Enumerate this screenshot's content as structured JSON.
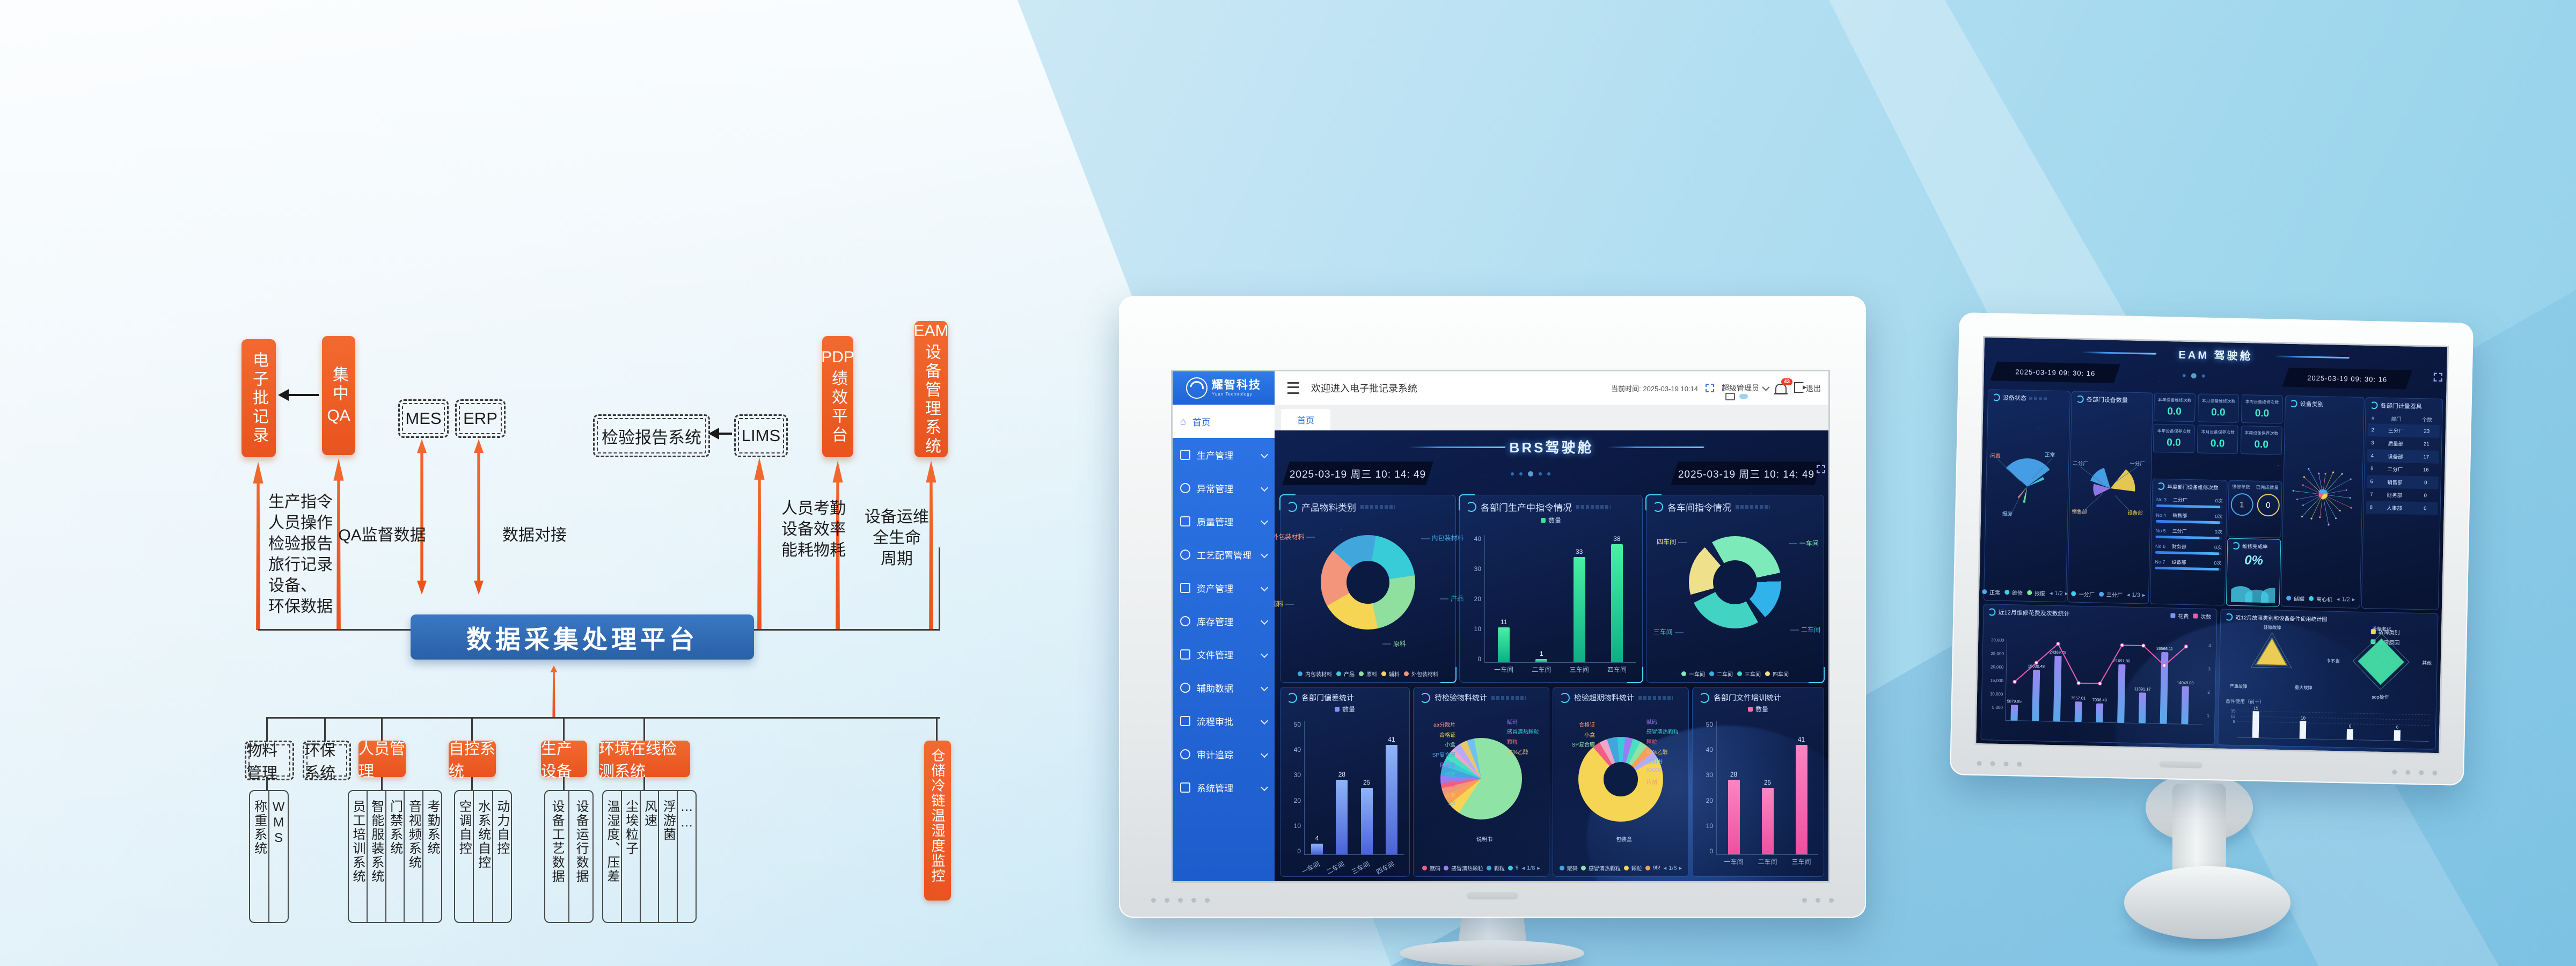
{
  "diagram": {
    "top_boxes": {
      "ebr": "电子批记录",
      "qa_cn": "集中",
      "qa_en": "QA",
      "mes": "MES",
      "erp": "ERP",
      "report": "检验报告系统",
      "lims": "LIMS",
      "pdp_en": "PDP",
      "pdp_cn": "绩效平台",
      "eam_en": "EAM",
      "eam_cn": "设备管理系统"
    },
    "labels": {
      "left_lines": [
        "生产指令",
        "人员操作",
        "检验报告",
        "旅行记录",
        "设备、",
        "环保数据"
      ],
      "qa_data": "QA监督数据",
      "link": "数据对接",
      "hr_lines": [
        "人员考勤",
        "设备效率",
        "能耗物耗"
      ],
      "ops_lines": [
        "设备运维",
        "全生命",
        "周期"
      ]
    },
    "platform": "数据采集处理平台",
    "bottom_boxes": [
      {
        "label": "物料管理",
        "variant": "dashed"
      },
      {
        "label": "环保系统",
        "variant": "dashed"
      },
      {
        "label": "人员管理",
        "variant": "solid"
      },
      {
        "label": "自控系统",
        "variant": "solid"
      },
      {
        "label": "生产设备",
        "variant": "solid"
      },
      {
        "label": "环境在线检测系统",
        "variant": "solid"
      }
    ],
    "storage": "仓储冷链温湿度监控",
    "groups": [
      [
        "称重系统",
        "WMS"
      ],
      [
        "员工培训系统",
        "智能服装系统",
        "门禁系统",
        "音视频系统",
        "考勤系统"
      ],
      [
        "空调自控",
        "水系统自控",
        "动力自控"
      ],
      [
        "设备工艺数据",
        "设备运行数据"
      ],
      [
        "温湿度、压差",
        "尘埃粒子",
        "风速",
        "浮游菌",
        "……"
      ]
    ]
  },
  "big": {
    "app": {
      "logo": "耀智科技",
      "logo_sub": "Yuan Technology",
      "welcome": "欢迎进入电子批记录系统",
      "time": "当前时间: 2025-03-19 10:14",
      "user": "超级管理员",
      "badge": "43",
      "logout": "退出",
      "tab": "首页",
      "menu": [
        {
          "label": "首页",
          "active": true
        },
        {
          "label": "生产管理"
        },
        {
          "label": "异常管理"
        },
        {
          "label": "质量管理"
        },
        {
          "label": "工艺配置管理"
        },
        {
          "label": "资产管理"
        },
        {
          "label": "库存管理"
        },
        {
          "label": "文件管理"
        },
        {
          "label": "辅助数据"
        },
        {
          "label": "流程审批"
        },
        {
          "label": "审计追踪"
        },
        {
          "label": "系统管理"
        }
      ]
    },
    "dash": {
      "title": "BRS驾驶舱",
      "date_left": "2025-03-19 周三 10: 14: 49",
      "date_right": "2025-03-19 周三 10: 14: 49",
      "material": {
        "title": "产品物料类别",
        "slices": [
          {
            "label": "外包装材料",
            "value": 20,
            "color": "#f2957b"
          },
          {
            "label": "内包装材料",
            "value": 16,
            "color": "#41a6dc"
          },
          {
            "label": "产品",
            "value": 20,
            "color": "#38cbd8"
          },
          {
            "label": "原料",
            "value": 24,
            "color": "#8fdf9f"
          },
          {
            "label": "辅料",
            "value": 20,
            "color": "#f6d554"
          }
        ],
        "callouts": [
          "外包装材料",
          "内包装材料",
          "辅料",
          "产品",
          "原料"
        ],
        "legend": [
          {
            "label": "内包装材料",
            "color": "#41a6dc"
          },
          {
            "label": "产品",
            "color": "#38cbd8"
          },
          {
            "label": "原料",
            "color": "#8fdf9f"
          },
          {
            "label": "辅料",
            "color": "#f6d554"
          },
          {
            "label": "外包装材料",
            "color": "#f2957b"
          }
        ]
      },
      "orders": {
        "title": "各部门生产中指令情况",
        "legend": [
          {
            "label": "数量",
            "color": "#3ee28f"
          }
        ],
        "categories": [
          "一车间",
          "二车间",
          "三车间",
          "四车间"
        ],
        "values": [
          11,
          1,
          33,
          38
        ],
        "yticks": [
          "40",
          "30",
          "20",
          "10",
          "0"
        ],
        "ymax": 40
      },
      "workshop": {
        "title": "各车间指令情况",
        "slices": [
          {
            "label": "一车间",
            "value": 30,
            "color": "#7debb9"
          },
          {
            "label": "二车间",
            "value": 14,
            "color": "#2fb3ea"
          },
          {
            "label": "三车间",
            "value": 26,
            "color": "#43d3c2"
          },
          {
            "label": "四车间",
            "value": 18,
            "color": "#efe08c"
          }
        ],
        "callouts": [
          "四车间",
          "一车间",
          "三车间",
          "二车间"
        ],
        "legend": [
          {
            "label": "一车间",
            "color": "#7debb9"
          },
          {
            "label": "二车间",
            "color": "#2fb3ea"
          },
          {
            "label": "三车间",
            "color": "#43d3c2"
          },
          {
            "label": "四车间",
            "color": "#efe08c"
          }
        ]
      },
      "deviation": {
        "title": "各部门偏差统计",
        "legend": [
          {
            "label": "数量",
            "color": "#7c93f2"
          }
        ],
        "categories": [
          "一车间",
          "二车间",
          "三车间",
          "四车间"
        ],
        "values": [
          4,
          28,
          25,
          41
        ],
        "yticks": [
          "50",
          "40",
          "30",
          "20",
          "10",
          "0"
        ],
        "ymax": 50
      },
      "pending": {
        "title": "待检验物料统计",
        "slices": [
          {
            "label": "说明书",
            "value": 62,
            "color": "#8fe3a5"
          },
          {
            "label": "颗粒",
            "value": 5,
            "color": "#f6d554"
          },
          {
            "label": "95%乙醇",
            "value": 4,
            "color": "#f89f58"
          },
          {
            "label": "赋码",
            "value": 3,
            "color": "#f2957b"
          },
          {
            "label": "感冒清热颗粒",
            "value": 2,
            "color": "#ef5f7f"
          },
          {
            "label": "aa分散片",
            "value": 3,
            "color": "#9a7df2"
          },
          {
            "label": "合格证",
            "value": 4,
            "color": "#41a6dc"
          },
          {
            "label": "小盒",
            "value": 3,
            "color": "#38cbd8"
          },
          {
            "label": "SP复合膜",
            "value": 3,
            "color": "#4adfc0"
          },
          {
            "label": "包装盒",
            "value": 2,
            "color": "#f0a6c8"
          },
          {
            "label": "标签",
            "value": 3,
            "color": "#b9aaf5"
          },
          {
            "label": "片剂",
            "value": 3,
            "color": "#e8c86a"
          },
          {
            "label": "胶囊",
            "value": 3,
            "color": "#6fc1f0"
          }
        ],
        "callouts_left": [
          "aa分散片",
          "合格证",
          "小盒",
          "SP复合膜",
          "包装盒",
          "标签",
          "胶囊",
          "片剂",
          "XX"
        ],
        "callouts_right": [
          "赋码",
          "感冒清热颗粒",
          "颗粒",
          "95%乙醇"
        ],
        "callout_bottom": "说明书",
        "legend": [
          {
            "label": "赋码",
            "color": "#ef5f7f"
          },
          {
            "label": "感冒清热颗粒",
            "color": "#9a7df2"
          },
          {
            "label": "颗粒",
            "color": "#41a6dc"
          },
          {
            "label": "9",
            "color": "#38cbd8"
          }
        ],
        "pager": "1/8"
      },
      "overdue": {
        "title": "检验超期物料统计",
        "slices": [
          {
            "label": "颗粒",
            "value": 72,
            "color": "#f6d554"
          },
          {
            "label": "赋码",
            "value": 3,
            "color": "#ef5f7f"
          },
          {
            "label": "感冒清热颗粒",
            "value": 3,
            "color": "#f0a6c8"
          },
          {
            "label": "合格证",
            "value": 4,
            "color": "#41a6dc"
          },
          {
            "label": "小盒",
            "value": 3,
            "color": "#38cbd8"
          },
          {
            "label": "aa分散片",
            "value": 3,
            "color": "#9a7df2"
          },
          {
            "label": "SP复合膜",
            "value": 3,
            "color": "#4adfc0"
          },
          {
            "label": "片剂",
            "value": 3,
            "color": "#8fe3a5"
          },
          {
            "label": "95%乙醇",
            "value": 3,
            "color": "#f89f58"
          },
          {
            "label": "胶囊",
            "value": 3,
            "color": "#b9aaf5"
          }
        ],
        "callouts_left": [
          "合格证",
          "小盒",
          "SP复合膜"
        ],
        "callouts_right": [
          "赋码",
          "感冒清热颗粒",
          "颗粒",
          "95%乙醇",
          "说明书",
          "XXXX",
          "片剂",
          "胶囊"
        ],
        "callout_bottom": "包装盒",
        "legend": [
          {
            "label": "赋码",
            "color": "#41a6dc"
          },
          {
            "label": "感冒清热颗粒",
            "color": "#8fe3a5"
          },
          {
            "label": "颗粒",
            "color": "#f6d554"
          },
          {
            "label": "95!",
            "color": "#f89f58"
          }
        ],
        "pager": "1/5"
      },
      "training": {
        "title": "各部门文件培训统计",
        "legend": [
          {
            "label": "数量",
            "color": "#f06eaa"
          }
        ],
        "categories": [
          "一车间",
          "二车间",
          "三车间"
        ],
        "values": [
          28,
          25,
          41
        ],
        "yticks": [
          "50",
          "40",
          "30",
          "20",
          "10",
          "0"
        ],
        "ymax": 50
      }
    }
  },
  "small": {
    "dash": {
      "title": "EAM 驾驶舱",
      "date_left": "2025-03-19 09: 30: 16",
      "date_right": "2025-03-19 09: 30: 16",
      "status": {
        "title": "设备状态",
        "callouts": [
          "闲置",
          "正常",
          "报废"
        ],
        "legend": [
          {
            "label": "正常",
            "color": "#4aa8f0"
          },
          {
            "label": "维修",
            "color": "#37d2e8"
          },
          {
            "label": "报废",
            "color": "#7ae8a0"
          }
        ],
        "pager": "1/2"
      },
      "deptcount": {
        "title": "各部门设备数量",
        "callouts": [
          "二分厂",
          "一分厂",
          "销售部",
          "设备部"
        ],
        "legend": [
          {
            "label": "一分厂",
            "color": "#37d2e8"
          },
          {
            "label": "三分厂",
            "color": "#4aa8f0"
          }
        ],
        "pager": "1/3"
      },
      "kpis": [
        {
          "label": "本年设备维修次数",
          "value": "0.0"
        },
        {
          "label": "本月设备维修次数",
          "value": "0.0"
        },
        {
          "label": "本周设备维修次数",
          "value": "0.0"
        },
        {
          "label": "本年设备保养次数",
          "value": "0.0"
        },
        {
          "label": "本月设备保养次数",
          "value": "0.0"
        },
        {
          "label": "本周设备保养次数",
          "value": "0.0"
        }
      ],
      "repairs": {
        "title": "年度部门设备维修次数",
        "rows": [
          {
            "rank": "No 3",
            "dept": "二分厂",
            "value": "0次"
          },
          {
            "rank": "No 4",
            "dept": "销售部",
            "value": "0次"
          },
          {
            "rank": "No 5",
            "dept": "三分厂",
            "value": "0次"
          },
          {
            "rank": "No 6",
            "dept": "财务部",
            "value": "0次"
          },
          {
            "rank": "No 7",
            "dept": "设备部",
            "value": "0次"
          }
        ]
      },
      "orders": {
        "left_label": "维修单数",
        "right_label": "已完成数量",
        "left_value": "1",
        "right_value": "0"
      },
      "rate": {
        "title": "维修完成率",
        "value": "0%"
      },
      "category": {
        "title": "设备类别",
        "legend": [
          {
            "label": "储罐",
            "color": "#4aa8f0"
          },
          {
            "label": "离心机",
            "color": "#37d2e8"
          }
        ],
        "pager": "1/2"
      },
      "meters": {
        "title": "各部门计量器具",
        "header": [
          "#",
          "部门",
          "个数"
        ],
        "rows": [
          [
            "2",
            "三分厂",
            "23"
          ],
          [
            "3",
            "质量部",
            "21"
          ],
          [
            "4",
            "设备部",
            "17"
          ],
          [
            "5",
            "二分厂",
            "16"
          ],
          [
            "6",
            "销售部",
            "0"
          ],
          [
            "7",
            "财务部",
            "0"
          ],
          [
            "8",
            "人事部",
            "0"
          ]
        ]
      },
      "cost": {
        "title": "近12月维修花费及次数统计",
        "legend": [
          {
            "label": "花费",
            "color": "#7c93f2"
          },
          {
            "label": "次数",
            "color": "#e85bb7"
          }
        ],
        "bars": [
          5879.95,
          19030.48,
          24369.75,
          7557.01,
          7036.48,
          21691.86,
          11391.17,
          26566.11,
          14049.03
        ],
        "line": [
          2,
          3,
          4,
          2,
          2,
          4,
          4,
          3,
          4
        ],
        "ymax": 30000,
        "yticks_left": [
          "30,000",
          "25,000",
          "20,000",
          "15,000",
          "10,000",
          "5,000"
        ],
        "yticks_right": [
          "4",
          "3",
          "2",
          "1"
        ]
      },
      "fault": {
        "title": "近12月故障类别和设备备件使用统计图",
        "legend": [
          {
            "label": "故障类别",
            "color": "#f6d554"
          },
          {
            "label": "故障原因",
            "color": "#46e0a8"
          }
        ],
        "radar1": [
          "轻微故障",
          "严重故障",
          "重大故障"
        ],
        "radar2": [
          "设备老化",
          "人为操作不当",
          "其他",
          "sop操作"
        ],
        "spare_title": "备件使用（前十）",
        "spare_values": [
          15,
          10,
          6,
          6
        ],
        "spare_ticks": [
          "15",
          "12",
          "9"
        ]
      }
    }
  }
}
